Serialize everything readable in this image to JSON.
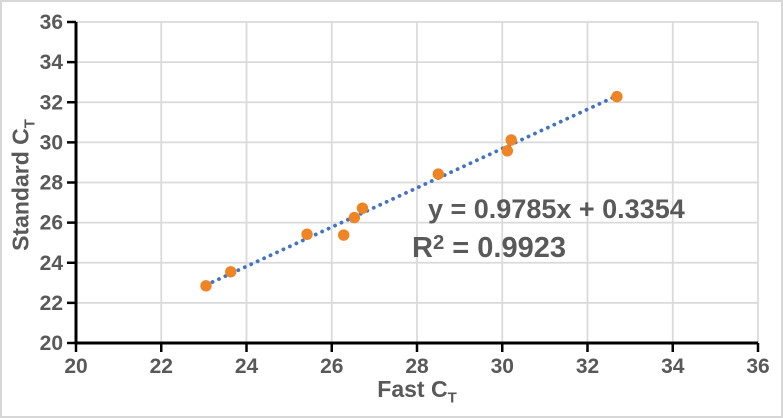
{
  "chart_data": {
    "type": "scatter",
    "title": "",
    "xlabel": {
      "main": "Fast C",
      "sub": "T"
    },
    "ylabel": {
      "main": "Standard C",
      "sub": "T"
    },
    "xlim": [
      20,
      36
    ],
    "ylim": [
      20,
      36
    ],
    "xticks": [
      20,
      22,
      24,
      26,
      28,
      30,
      32,
      34,
      36
    ],
    "yticks": [
      20,
      22,
      24,
      26,
      28,
      30,
      32,
      34,
      36
    ],
    "grid": true,
    "legend": "none",
    "points": [
      [
        23.05,
        22.85
      ],
      [
        23.63,
        23.55
      ],
      [
        25.42,
        25.42
      ],
      [
        26.28,
        25.38
      ],
      [
        26.53,
        26.25
      ],
      [
        26.72,
        26.72
      ],
      [
        28.5,
        28.42
      ],
      [
        30.12,
        29.58
      ],
      [
        30.21,
        30.12
      ],
      [
        32.69,
        32.28
      ]
    ],
    "trendline": {
      "slope": 0.9785,
      "intercept": 0.3354,
      "x_start": 23.05,
      "x_end": 32.69,
      "style": "dotted"
    },
    "annotation": {
      "equation": "y = 0.9785x + 0.3354",
      "r2_base": "R",
      "r2_sup": "2",
      "r2_rest": " = 0.9923"
    },
    "colors": {
      "points": "#EE8424",
      "trendline": "#4472C4",
      "text": "#595959",
      "gridlines": "#DADADA",
      "axis": "#000000"
    }
  }
}
